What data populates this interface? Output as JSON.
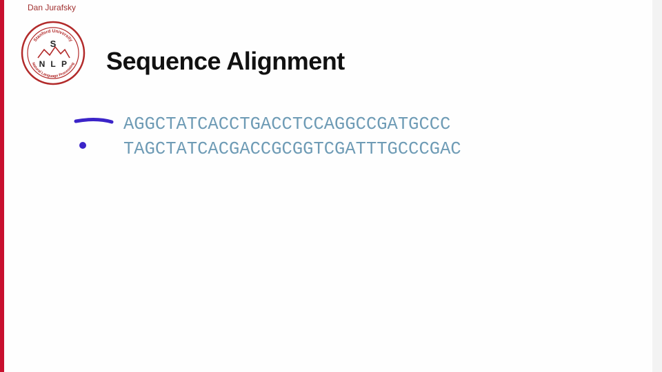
{
  "slide": {
    "author": "Dan Jurafsky",
    "title": "Sequence Alignment",
    "logo": {
      "top_text": "Stanford University",
      "bottom_text": "Natural Language Processing",
      "letters": [
        "S",
        "N",
        "L",
        "P"
      ]
    },
    "sequences": [
      "AGGCTATCACCTGACCTCCAGGCCGATGCCC",
      "TAGCTATCACGACCGCGGTCGATTTGCCCGAC"
    ]
  },
  "colors": {
    "accent_red": "#c8102e",
    "sequence_text": "#6e9bb5",
    "pen_ink": "#3b24c8"
  }
}
